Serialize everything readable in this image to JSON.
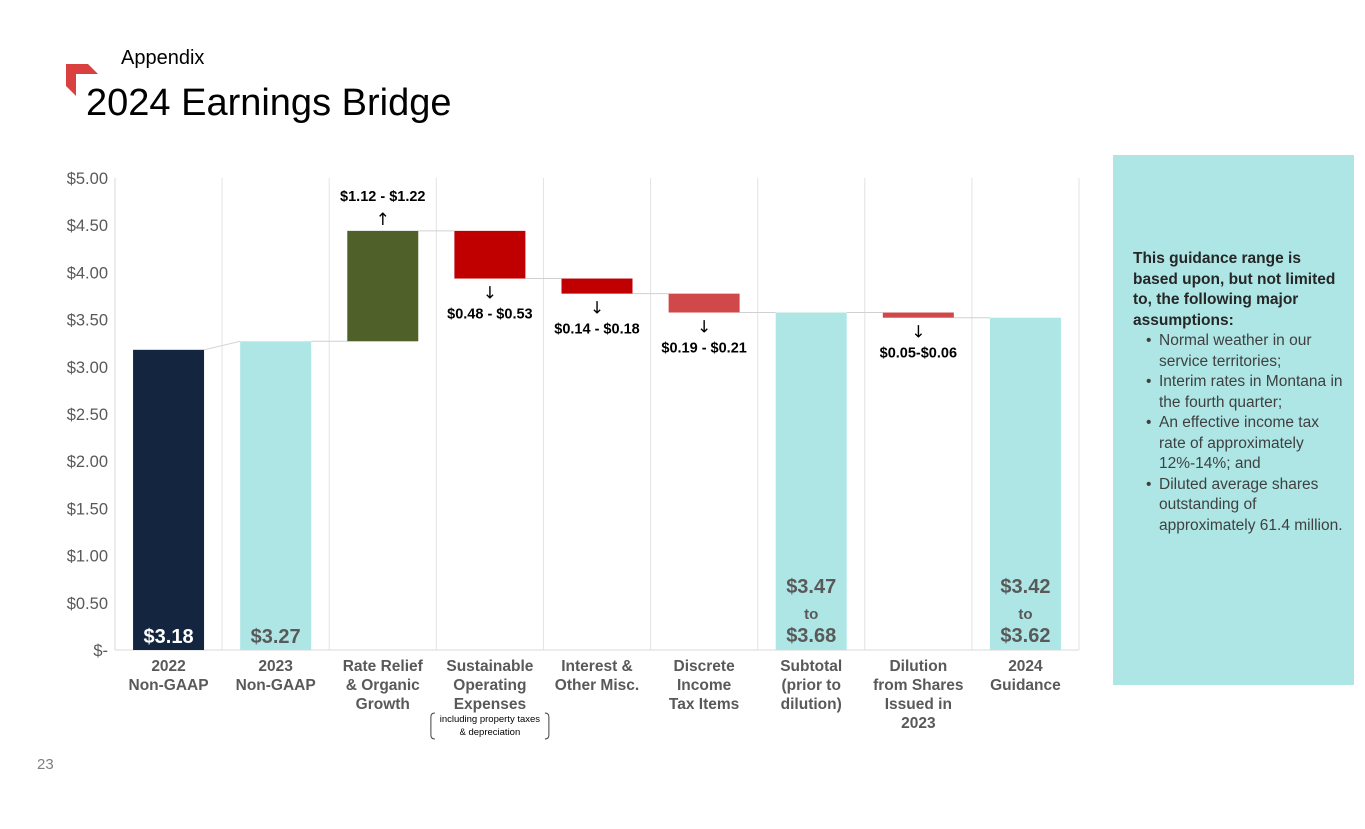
{
  "header": {
    "section": "Appendix",
    "title": "2024 Earnings Bridge",
    "page_number": "23"
  },
  "colors": {
    "accent_red": "#d9403f",
    "navy": "#14263f",
    "teal": "#aee6e6",
    "olive": "#4f6128",
    "dark_red": "#c00000",
    "light_red": "#d04849",
    "text_gray": "#595959"
  },
  "chart_data": {
    "type": "bar",
    "subtype": "waterfall",
    "title": "2024 Earnings Bridge",
    "ylim": [
      0,
      5
    ],
    "yticks": [
      {
        "value": 0,
        "label": "$-"
      },
      {
        "value": 0.5,
        "label": "$0.50"
      },
      {
        "value": 1,
        "label": "$1.00"
      },
      {
        "value": 1.5,
        "label": "$1.50"
      },
      {
        "value": 2,
        "label": "$2.00"
      },
      {
        "value": 2.5,
        "label": "$2.50"
      },
      {
        "value": 3,
        "label": "$3.00"
      },
      {
        "value": 3.5,
        "label": "$3.50"
      },
      {
        "value": 4,
        "label": "$4.00"
      },
      {
        "value": 4.5,
        "label": "$4.50"
      },
      {
        "value": 5,
        "label": "$5.00"
      }
    ],
    "grid": true,
    "categories": [
      [
        "2022",
        "Non-GAAP"
      ],
      [
        "2023",
        "Non-GAAP"
      ],
      [
        "Rate Relief",
        "& Organic",
        "Growth"
      ],
      [
        "Sustainable",
        "Operating",
        "Expenses"
      ],
      [
        "Interest &",
        "Other Misc."
      ],
      [
        "Discrete",
        "Income",
        "Tax Items"
      ],
      [
        "Subtotal",
        "(prior to",
        "dilution)"
      ],
      [
        "Dilution",
        "from Shares",
        "Issued in",
        "2023"
      ],
      [
        "2024",
        "Guidance"
      ]
    ],
    "category_note": [
      "including property taxes",
      "& depreciation"
    ],
    "bars": [
      {
        "kind": "total",
        "base": 0,
        "top": 3.18,
        "color": "#14263f",
        "labels": [
          "$3.18"
        ],
        "label_color": "#ffffff"
      },
      {
        "kind": "total",
        "base": 0,
        "top": 3.27,
        "color": "#aee6e6",
        "labels": [
          "$3.27"
        ],
        "label_color": "#595959"
      },
      {
        "kind": "increase",
        "base": 3.27,
        "top": 4.44,
        "color": "#4f6128",
        "range_label": "$1.12 - $1.22",
        "arrow": "↑"
      },
      {
        "kind": "decrease",
        "base": 3.935,
        "top": 4.44,
        "color": "#c00000",
        "range_label": "$0.48 - $0.53",
        "arrow": "↓"
      },
      {
        "kind": "decrease",
        "base": 3.775,
        "top": 3.935,
        "color": "#c00000",
        "range_label": "$0.14 - $0.18",
        "arrow": "↓"
      },
      {
        "kind": "decrease",
        "base": 3.575,
        "top": 3.775,
        "color": "#d04849",
        "range_label": "$0.19 - $0.21",
        "arrow": "↓"
      },
      {
        "kind": "total",
        "base": 0,
        "top": 3.575,
        "color": "#aee6e6",
        "labels": [
          "$3.47",
          "to",
          "$3.68"
        ],
        "label_color": "#595959"
      },
      {
        "kind": "decrease",
        "base": 3.52,
        "top": 3.575,
        "color": "#d04849",
        "range_label": "$0.05-$0.06",
        "arrow": "↓"
      },
      {
        "kind": "total",
        "base": 0,
        "top": 3.52,
        "color": "#aee6e6",
        "labels": [
          "$3.42",
          "to",
          "$3.62"
        ],
        "label_color": "#595959"
      }
    ]
  },
  "assumptions": {
    "heading": "This guidance range is based upon, but not limited to, the following major assumptions:",
    "items": [
      "Normal weather in our service territories;",
      "Interim rates in Montana in the fourth quarter;",
      "An effective income tax rate of approximately 12%-14%; and",
      "Diluted average shares outstanding of approximately 61.4 million."
    ]
  }
}
